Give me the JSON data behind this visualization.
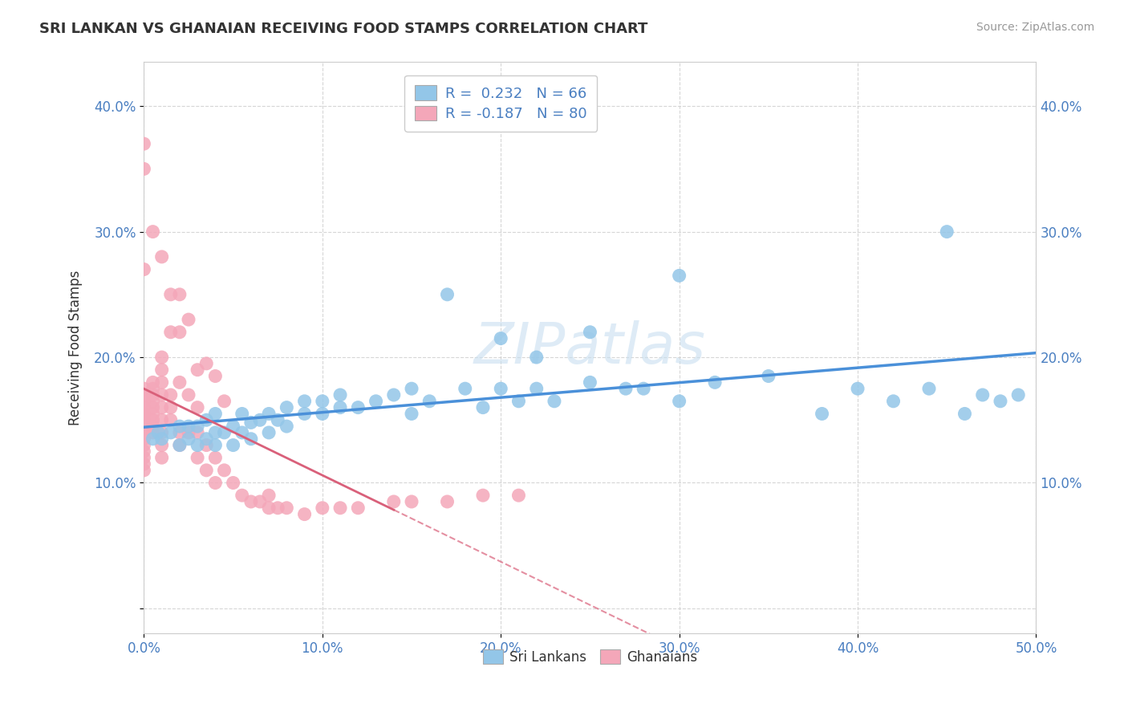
{
  "title": "SRI LANKAN VS GHANAIAN RECEIVING FOOD STAMPS CORRELATION CHART",
  "source": "Source: ZipAtlas.com",
  "ylabel_label": "Receiving Food Stamps",
  "xlim": [
    0.0,
    0.5
  ],
  "ylim": [
    -0.02,
    0.435
  ],
  "xticks": [
    0.0,
    0.1,
    0.2,
    0.3,
    0.4,
    0.5
  ],
  "yticks": [
    0.0,
    0.1,
    0.2,
    0.3,
    0.4
  ],
  "xtick_labels": [
    "0.0%",
    "10.0%",
    "20.0%",
    "30.0%",
    "40.0%",
    "50.0%"
  ],
  "ytick_labels": [
    "",
    "10.0%",
    "20.0%",
    "30.0%",
    "40.0%"
  ],
  "sri_lankan_color": "#93c6e8",
  "ghanaian_color": "#f4a7b9",
  "sri_lankan_line_color": "#4a90d9",
  "ghanaian_line_color": "#d9607a",
  "R_sri": 0.232,
  "N_sri": 66,
  "R_gha": -0.187,
  "N_gha": 80,
  "sri_x": [
    0.005,
    0.008,
    0.01,
    0.015,
    0.02,
    0.02,
    0.025,
    0.025,
    0.03,
    0.03,
    0.035,
    0.035,
    0.04,
    0.04,
    0.04,
    0.045,
    0.05,
    0.05,
    0.055,
    0.055,
    0.06,
    0.06,
    0.065,
    0.07,
    0.07,
    0.075,
    0.08,
    0.08,
    0.09,
    0.09,
    0.1,
    0.1,
    0.11,
    0.11,
    0.12,
    0.13,
    0.14,
    0.15,
    0.15,
    0.16,
    0.18,
    0.19,
    0.2,
    0.21,
    0.22,
    0.23,
    0.25,
    0.27,
    0.28,
    0.3,
    0.32,
    0.35,
    0.38,
    0.4,
    0.42,
    0.44,
    0.46,
    0.47,
    0.48,
    0.49,
    0.45,
    0.3,
    0.22,
    0.25,
    0.2,
    0.17
  ],
  "sri_y": [
    0.135,
    0.14,
    0.135,
    0.14,
    0.13,
    0.145,
    0.135,
    0.145,
    0.13,
    0.145,
    0.135,
    0.15,
    0.13,
    0.14,
    0.155,
    0.14,
    0.13,
    0.145,
    0.14,
    0.155,
    0.135,
    0.148,
    0.15,
    0.14,
    0.155,
    0.15,
    0.145,
    0.16,
    0.155,
    0.165,
    0.155,
    0.165,
    0.16,
    0.17,
    0.16,
    0.165,
    0.17,
    0.155,
    0.175,
    0.165,
    0.175,
    0.16,
    0.175,
    0.165,
    0.175,
    0.165,
    0.18,
    0.175,
    0.175,
    0.165,
    0.18,
    0.185,
    0.155,
    0.175,
    0.165,
    0.175,
    0.155,
    0.17,
    0.165,
    0.17,
    0.3,
    0.265,
    0.2,
    0.22,
    0.215,
    0.25
  ],
  "gha_x": [
    0.0,
    0.0,
    0.0,
    0.0,
    0.0,
    0.0,
    0.0,
    0.0,
    0.0,
    0.0,
    0.0,
    0.0,
    0.0,
    0.0,
    0.0,
    0.005,
    0.005,
    0.005,
    0.005,
    0.005,
    0.005,
    0.005,
    0.005,
    0.005,
    0.01,
    0.01,
    0.01,
    0.01,
    0.01,
    0.01,
    0.01,
    0.01,
    0.01,
    0.015,
    0.015,
    0.015,
    0.015,
    0.02,
    0.02,
    0.02,
    0.02,
    0.025,
    0.025,
    0.03,
    0.03,
    0.03,
    0.035,
    0.035,
    0.04,
    0.04,
    0.045,
    0.05,
    0.055,
    0.06,
    0.065,
    0.07,
    0.07,
    0.075,
    0.08,
    0.09,
    0.1,
    0.11,
    0.12,
    0.14,
    0.15,
    0.17,
    0.19,
    0.21,
    0.0,
    0.0,
    0.0,
    0.005,
    0.01,
    0.015,
    0.02,
    0.025,
    0.03,
    0.035,
    0.04,
    0.045
  ],
  "gha_y": [
    0.135,
    0.14,
    0.145,
    0.15,
    0.155,
    0.13,
    0.125,
    0.12,
    0.115,
    0.11,
    0.165,
    0.16,
    0.155,
    0.17,
    0.175,
    0.14,
    0.145,
    0.15,
    0.155,
    0.16,
    0.165,
    0.17,
    0.175,
    0.18,
    0.12,
    0.13,
    0.14,
    0.15,
    0.16,
    0.17,
    0.18,
    0.19,
    0.2,
    0.15,
    0.16,
    0.17,
    0.22,
    0.13,
    0.14,
    0.18,
    0.25,
    0.14,
    0.17,
    0.12,
    0.14,
    0.16,
    0.11,
    0.13,
    0.1,
    0.12,
    0.11,
    0.1,
    0.09,
    0.085,
    0.085,
    0.08,
    0.09,
    0.08,
    0.08,
    0.075,
    0.08,
    0.08,
    0.08,
    0.085,
    0.085,
    0.085,
    0.09,
    0.09,
    0.35,
    0.37,
    0.27,
    0.3,
    0.28,
    0.25,
    0.22,
    0.23,
    0.19,
    0.195,
    0.185,
    0.165
  ]
}
